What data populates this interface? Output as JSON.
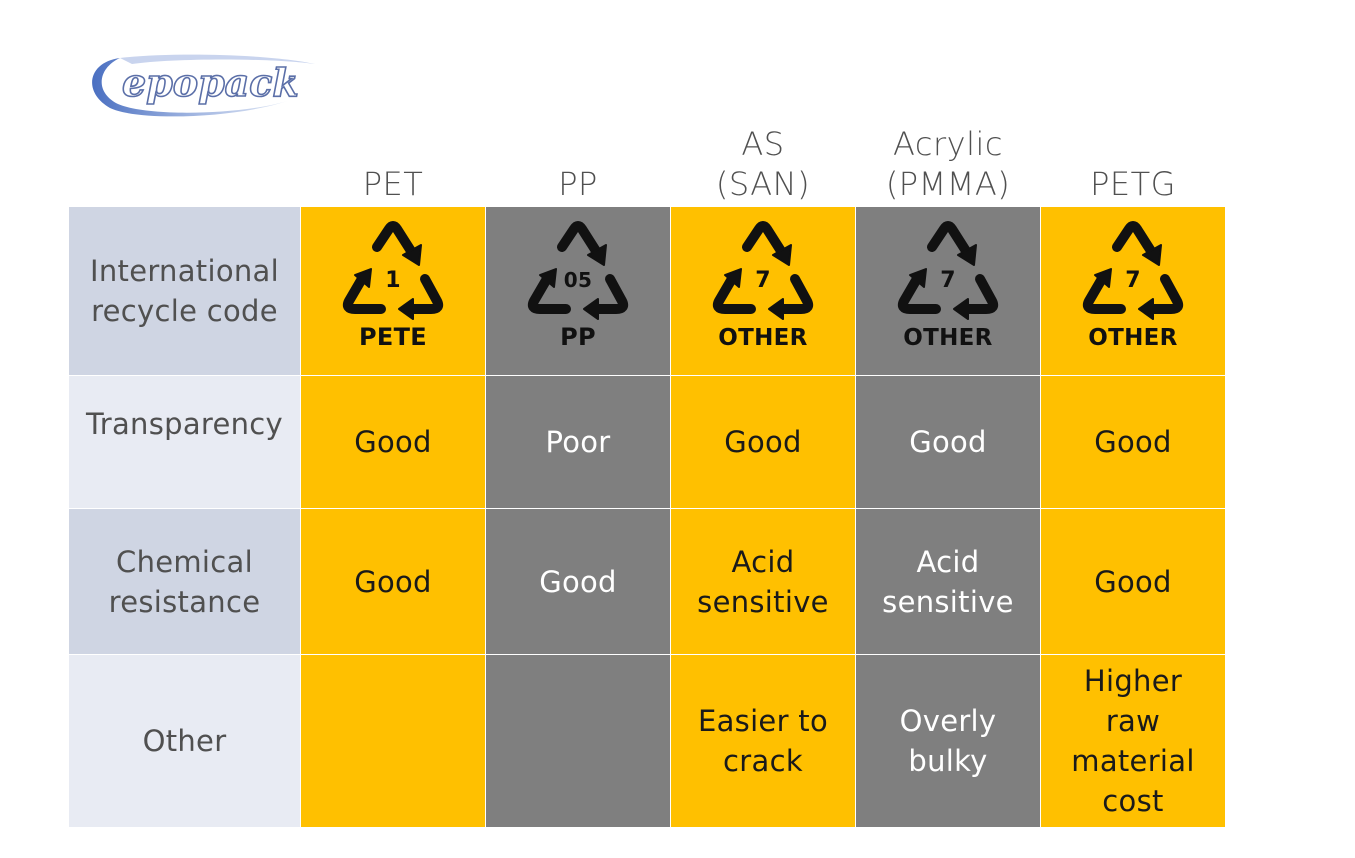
{
  "logo": {
    "text": "epopack"
  },
  "columns": [
    {
      "label_line1": "",
      "label_line2": "PET",
      "recycle": {
        "number": "1",
        "code": "PETE"
      }
    },
    {
      "label_line1": "",
      "label_line2": "PP",
      "recycle": {
        "number": "05",
        "code": "PP"
      }
    },
    {
      "label_line1": "AS",
      "label_line2": "(SAN)",
      "recycle": {
        "number": "7",
        "code": "OTHER"
      }
    },
    {
      "label_line1": "Acrylic",
      "label_line2": "(PMMA)",
      "recycle": {
        "number": "7",
        "code": "OTHER"
      }
    },
    {
      "label_line1": "",
      "label_line2": "PETG",
      "recycle": {
        "number": "7",
        "code": "OTHER"
      }
    }
  ],
  "rows": {
    "recycle_code": {
      "label_line1": "International",
      "label_line2": "recycle code"
    },
    "transparency": {
      "label": "Transparency",
      "values": [
        "Good",
        "Poor",
        "Good",
        "Good",
        "Good"
      ]
    },
    "chemical_resistance": {
      "label_line1": "Chemical",
      "label_line2": "resistance",
      "values": [
        {
          "line1": "Good",
          "line2": ""
        },
        {
          "line1": "Good",
          "line2": ""
        },
        {
          "line1": "Acid",
          "line2": "sensitive"
        },
        {
          "line1": "Acid",
          "line2": "sensitive"
        },
        {
          "line1": "Good",
          "line2": ""
        }
      ]
    },
    "other": {
      "label": "Other",
      "values": [
        {
          "lines": []
        },
        {
          "lines": []
        },
        {
          "lines": [
            "Easier to",
            "crack"
          ]
        },
        {
          "lines": [
            "Overly",
            "bulky"
          ]
        },
        {
          "lines": [
            "Higher",
            "raw",
            "material",
            "cost"
          ]
        }
      ]
    }
  },
  "colors": {
    "gold": "#ffc000",
    "grey": "#7f7f7f",
    "label_dark": "#cfd5e3",
    "label_light": "#e8ebf3",
    "header_text": "#505050"
  }
}
